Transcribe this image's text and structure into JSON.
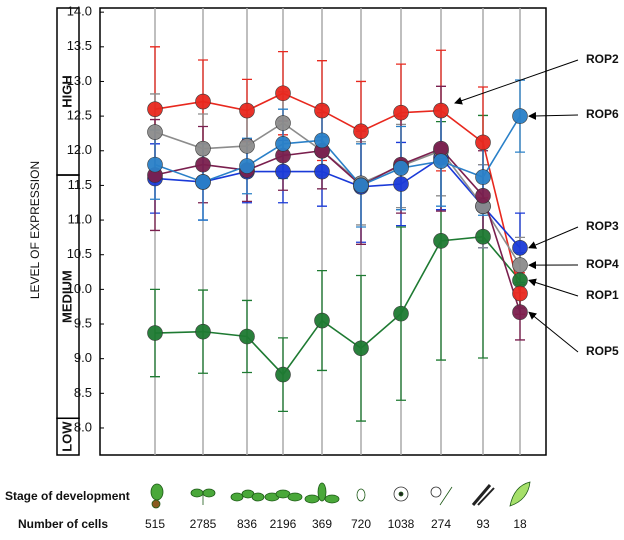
{
  "chart_data": {
    "type": "line",
    "y_label": "LEVEL OF EXPRESSION",
    "row_labels": [
      "Stage of development",
      "Number of cells"
    ],
    "categories": [
      "515",
      "2785",
      "836",
      "2196",
      "369",
      "720",
      "1038",
      "274",
      "93",
      "18"
    ],
    "bands": [
      {
        "label": "HIGH",
        "from": 11.65,
        "to": 14.06
      },
      {
        "label": "MEDIUM",
        "from": 8.14,
        "to": 11.65
      },
      {
        "label": "LOW",
        "from": 7.61,
        "to": 8.14
      }
    ],
    "series": [
      {
        "name": "ROP1",
        "color": "#1e7a32",
        "values": [
          9.37,
          9.39,
          9.32,
          8.77,
          9.55,
          9.15,
          9.65,
          10.7,
          10.76,
          10.13
        ],
        "errors": [
          0.63,
          0.6,
          0.52,
          0.53,
          0.72,
          1.05,
          1.25,
          1.72,
          1.75,
          0.4
        ]
      },
      {
        "name": "ROP2",
        "color": "#e8281e",
        "values": [
          12.6,
          12.71,
          12.58,
          12.83,
          12.58,
          12.28,
          12.55,
          12.58,
          12.12,
          9.94
        ],
        "errors": [
          0.9,
          0.6,
          0.45,
          0.6,
          0.72,
          0.72,
          0.7,
          0.87,
          0.8,
          0.3
        ]
      },
      {
        "name": "ROP3",
        "color": "#1a3ad8",
        "values": [
          11.6,
          11.55,
          11.7,
          11.7,
          11.7,
          11.48,
          11.52,
          11.9,
          11.2,
          10.6
        ],
        "errors": [
          0.5,
          0.55,
          0.45,
          0.45,
          0.5,
          0.8,
          0.6,
          0.75,
          0.6,
          0.5
        ]
      },
      {
        "name": "ROP4",
        "color": "#8c8c8c",
        "values": [
          12.27,
          12.03,
          12.07,
          12.4,
          12.0,
          11.53,
          11.78,
          12.0,
          11.2,
          10.35
        ],
        "errors": [
          0.55,
          0.5,
          0.45,
          0.45,
          0.55,
          0.6,
          0.6,
          0.65,
          0.6,
          0.4
        ]
      },
      {
        "name": "ROP5",
        "color": "#7a1f4e",
        "values": [
          11.65,
          11.8,
          11.72,
          11.93,
          12.0,
          11.5,
          11.8,
          12.03,
          11.35,
          9.67
        ],
        "errors": [
          0.8,
          0.55,
          0.45,
          0.5,
          0.55,
          0.85,
          0.7,
          0.9,
          0.65,
          0.4
        ]
      },
      {
        "name": "ROP6",
        "color": "#2a80c8",
        "values": [
          11.8,
          11.55,
          11.78,
          12.1,
          12.15,
          11.5,
          11.75,
          11.85,
          11.62,
          12.5
        ],
        "errors": [
          0.5,
          0.55,
          0.4,
          0.5,
          0.5,
          0.6,
          0.6,
          0.65,
          0.55,
          0.52
        ]
      }
    ],
    "ylim": [
      7.61,
      14.06
    ],
    "yticks": [
      {
        "value": 8,
        "label": "8.0"
      },
      8.5,
      {
        "value": 9,
        "label": "9.0"
      },
      9.5,
      {
        "value": 10,
        "label": "10.0"
      },
      10.5,
      {
        "value": 11,
        "label": "11.0"
      },
      11.5,
      {
        "value": 12,
        "label": "12.0"
      },
      12.5,
      {
        "value": 13,
        "label": "13.0"
      },
      13.5,
      {
        "value": 14,
        "label": "14.0"
      }
    ],
    "grid": true
  }
}
